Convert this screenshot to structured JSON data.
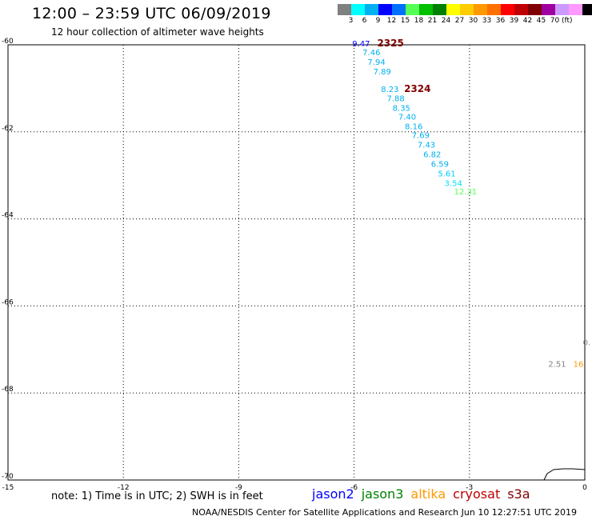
{
  "header": {
    "title": "12:00 – 23:59 UTC 06/09/2019",
    "subtitle": "12 hour collection of altimeter wave heights"
  },
  "color_scale": {
    "colors": [
      "#808080",
      "#00ffff",
      "#00b0f0",
      "#0000ff",
      "#0070ff",
      "#55ff55",
      "#00c000",
      "#008000",
      "#ffff00",
      "#ffcc00",
      "#ff9900",
      "#ff7000",
      "#ff0000",
      "#c00000",
      "#800000",
      "#a000a0",
      "#cc99ff",
      "#ff99ff",
      "#000000"
    ],
    "labels": [
      "3",
      "6",
      "9",
      "12",
      "15",
      "18",
      "21",
      "24",
      "27",
      "30",
      "33",
      "36",
      "39",
      "42",
      "45",
      "70"
    ],
    "unit": "(ft)"
  },
  "axes": {
    "lon_ticks": [
      {
        "lon": -15,
        "label": "-15"
      },
      {
        "lon": -12,
        "label": "-12"
      },
      {
        "lon": -9,
        "label": "-9"
      },
      {
        "lon": -6,
        "label": "-6"
      },
      {
        "lon": -3,
        "label": "-3"
      },
      {
        "lon": 0,
        "label": "0"
      }
    ],
    "lat_ticks": [
      {
        "lat": -60,
        "label": "-60"
      },
      {
        "lat": -62,
        "label": "-62"
      },
      {
        "lat": -64,
        "label": "-64"
      },
      {
        "lat": -66,
        "label": "-66"
      },
      {
        "lat": -68,
        "label": "-68"
      },
      {
        "lat": -70,
        "label": "-70"
      }
    ],
    "lon_range": [
      -15,
      0
    ],
    "lat_range": [
      -60,
      -70
    ]
  },
  "observations": [
    {
      "value": "9.47",
      "lon": -6.05,
      "lat": -60.04,
      "color": "#0000ff"
    },
    {
      "value": "7.46",
      "lon": -5.78,
      "lat": -60.24,
      "color": "#00b0f0"
    },
    {
      "value": "7.94",
      "lon": -5.65,
      "lat": -60.46,
      "color": "#00b0f0"
    },
    {
      "value": "7.89",
      "lon": -5.5,
      "lat": -60.68,
      "color": "#00b0f0"
    },
    {
      "value": "8.23",
      "lon": -5.3,
      "lat": -61.08,
      "color": "#00b0f0"
    },
    {
      "value": "7.88",
      "lon": -5.15,
      "lat": -61.3,
      "color": "#00b0f0"
    },
    {
      "value": "8.35",
      "lon": -5.0,
      "lat": -61.52,
      "color": "#00b0f0"
    },
    {
      "value": "7.40",
      "lon": -4.85,
      "lat": -61.72,
      "color": "#00b0f0"
    },
    {
      "value": "8.16",
      "lon": -4.68,
      "lat": -61.94,
      "color": "#00b0f0"
    },
    {
      "value": "7.69",
      "lon": -4.5,
      "lat": -62.14,
      "color": "#00b0f0"
    },
    {
      "value": "7.43",
      "lon": -4.35,
      "lat": -62.36,
      "color": "#00b0f0"
    },
    {
      "value": "6.82",
      "lon": -4.2,
      "lat": -62.58,
      "color": "#00b0f0"
    },
    {
      "value": "6.59",
      "lon": -4.0,
      "lat": -62.8,
      "color": "#00b0f0"
    },
    {
      "value": "5.61",
      "lon": -3.82,
      "lat": -63.02,
      "color": "#00ccff"
    },
    {
      "value": "3.54",
      "lon": -3.65,
      "lat": -63.24,
      "color": "#00e0ff"
    },
    {
      "value": "12.31",
      "lon": -3.4,
      "lat": -63.44,
      "color": "#55ff55"
    },
    {
      "value": "2.51",
      "lon": -0.95,
      "lat": -67.4,
      "color": "#808080"
    },
    {
      "value": "16",
      "lon": -0.3,
      "lat": -67.4,
      "color": "#ff9900"
    },
    {
      "value": "0.",
      "lon": -0.05,
      "lat": -66.9,
      "color": "#808080"
    }
  ],
  "time_labels": [
    {
      "text": "2325",
      "lon": -5.4,
      "lat": -60.04,
      "color": "#800000"
    },
    {
      "text": "2324",
      "lon": -4.7,
      "lat": -61.08,
      "color": "#800000"
    }
  ],
  "footer": {
    "note": "note: 1) Time is in UTC; 2) SWH is in feet",
    "satellites": [
      {
        "name": "jason2",
        "color": "#0000ff"
      },
      {
        "name": "jason3",
        "color": "#008000"
      },
      {
        "name": "altika",
        "color": "#ff9900"
      },
      {
        "name": "cryosat",
        "color": "#c00000"
      },
      {
        "name": "s3a",
        "color": "#800000"
      }
    ],
    "credit": "NOAA/NESDIS Center for Satellite Applications and Research    Jun 10 12:27:51 UTC 2019"
  }
}
